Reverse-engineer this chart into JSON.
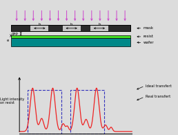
{
  "bg_color": "#dcdcdc",
  "mask_light": "#c8c8c8",
  "mask_dark": "#2a2a2a",
  "resist_color": "#44dd22",
  "wafer_color": "#008888",
  "arrow_color": "#cc44cc",
  "ideal_color": "#3333bb",
  "real_color": "#ee2222",
  "labels": {
    "gap": "gap",
    "e": "e",
    "b": "b",
    "mask": "mask",
    "resist": "resist",
    "wafer": "wafer",
    "light_intensity": "Light intensity\non resist",
    "ideal": "Ideal transfert",
    "real": "Real transfert"
  }
}
